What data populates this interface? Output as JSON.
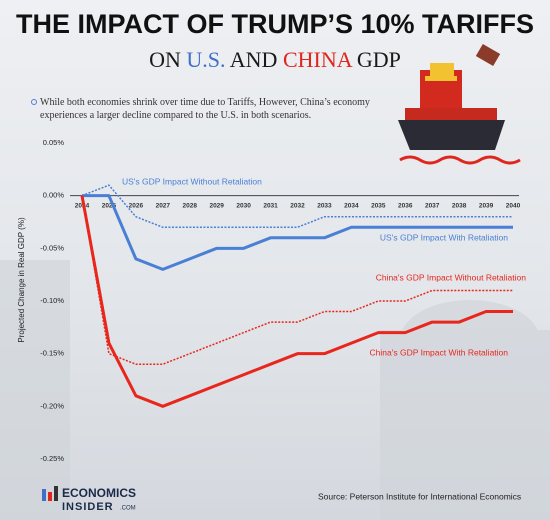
{
  "chart_data": {
    "type": "line",
    "title": "THE IMPACT OF TRUMP’S 10% TARIFFS",
    "subtitle": [
      {
        "text": "ON",
        "color": "#1a1a1a"
      },
      {
        "text": "U.S.",
        "color": "#3f6fc8"
      },
      {
        "text": "AND",
        "color": "#1a1a1a"
      },
      {
        "text": "CHINA",
        "color": "#e0261c"
      },
      {
        "text": "GDP",
        "color": "#1a1a1a"
      }
    ],
    "description": "While both economies shrink over time due to Tariffs, However, China’s economy experiences a larger decline compared to the U.S. in both scenarios.",
    "y_label": "Projected Change in Real GDP (%)",
    "source": "Source: Peterson Institute for International Economics",
    "logo": {
      "top": "ECONOMICS",
      "bottom": "INSIDER",
      "suffix": ".COM"
    },
    "categories": [
      "2024",
      "2025",
      "2026",
      "2027",
      "2028",
      "2029",
      "2030",
      "2031",
      "2032",
      "2033",
      "2034",
      "2035",
      "2036",
      "2037",
      "2038",
      "2039",
      "2040"
    ],
    "series": [
      {
        "name": "US's GDP Impact Without Retaliation",
        "color": "#4a7fd6",
        "line_style": "dotted",
        "values": [
          0,
          0.01,
          -0.02,
          -0.03,
          -0.03,
          -0.03,
          -0.03,
          -0.03,
          -0.03,
          -0.02,
          -0.02,
          -0.02,
          -0.02,
          -0.02,
          -0.02,
          -0.02,
          -0.02
        ]
      },
      {
        "name": "US's GDP Impact With Retaliation",
        "color": "#4a7fd6",
        "line_style": "solid",
        "values": [
          0,
          0,
          -0.06,
          -0.07,
          -0.06,
          -0.05,
          -0.05,
          -0.04,
          -0.04,
          -0.04,
          -0.03,
          -0.03,
          -0.03,
          -0.03,
          -0.03,
          -0.03,
          -0.03
        ]
      },
      {
        "name": "China's GDP Impact Without Retaliation",
        "color": "#e8261c",
        "line_style": "dotted",
        "values": [
          0,
          -0.15,
          -0.16,
          -0.16,
          -0.15,
          -0.14,
          -0.13,
          -0.12,
          -0.12,
          -0.11,
          -0.11,
          -0.1,
          -0.1,
          -0.09,
          -0.09,
          -0.09,
          -0.09
        ]
      },
      {
        "name": "China's GDP Impact With Retaliation",
        "color": "#e8261c",
        "line_style": "solid",
        "values": [
          0,
          -0.14,
          -0.19,
          -0.2,
          -0.19,
          -0.18,
          -0.17,
          -0.16,
          -0.15,
          -0.15,
          -0.14,
          -0.13,
          -0.13,
          -0.12,
          -0.12,
          -0.11,
          -0.11
        ]
      }
    ],
    "ylim": [
      -0.25,
      0.05
    ],
    "yticks": [
      {
        "value": 0.05,
        "label": "0.05%"
      },
      {
        "value": 0,
        "label": "0.00%"
      },
      {
        "value": -0.05,
        "label": "-0.05%"
      },
      {
        "value": -0.1,
        "label": "-0.10%"
      },
      {
        "value": -0.15,
        "label": "-0.15%"
      },
      {
        "value": -0.2,
        "label": "-0.20%"
      },
      {
        "value": -0.25,
        "label": "-0.25%"
      }
    ]
  }
}
